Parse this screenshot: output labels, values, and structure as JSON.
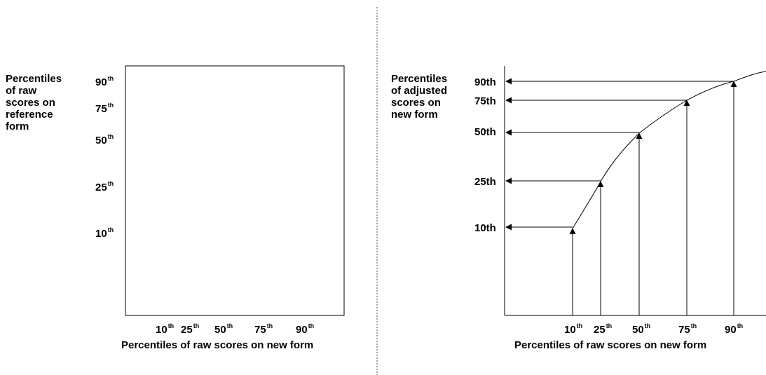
{
  "left": {
    "ylabel_lines": [
      "Percentiles",
      "of raw",
      "scores on",
      "reference",
      "form"
    ],
    "xlabel": "Percentiles of raw scores on new form",
    "ticks": [
      {
        "num": "10",
        "suffix": "th"
      },
      {
        "num": "25",
        "suffix": "th"
      },
      {
        "num": "50",
        "suffix": "th"
      },
      {
        "num": "75",
        "suffix": "th"
      },
      {
        "num": "90",
        "suffix": "th"
      }
    ]
  },
  "right": {
    "ylabel_lines": [
      "Percentiles",
      "of adjusted",
      "scores on",
      "new form"
    ],
    "xlabel": "Percentiles of raw scores on new form",
    "xticks": [
      {
        "num": "10",
        "suffix": "th"
      },
      {
        "num": "25",
        "suffix": "th"
      },
      {
        "num": "50",
        "suffix": "th"
      },
      {
        "num": "75",
        "suffix": "th"
      },
      {
        "num": "90",
        "suffix": "th"
      }
    ],
    "yticks": [
      "10th",
      "25th",
      "50th",
      "75th",
      "90th"
    ]
  },
  "colors": {
    "ink": "#000000",
    "divider": "#888888"
  }
}
